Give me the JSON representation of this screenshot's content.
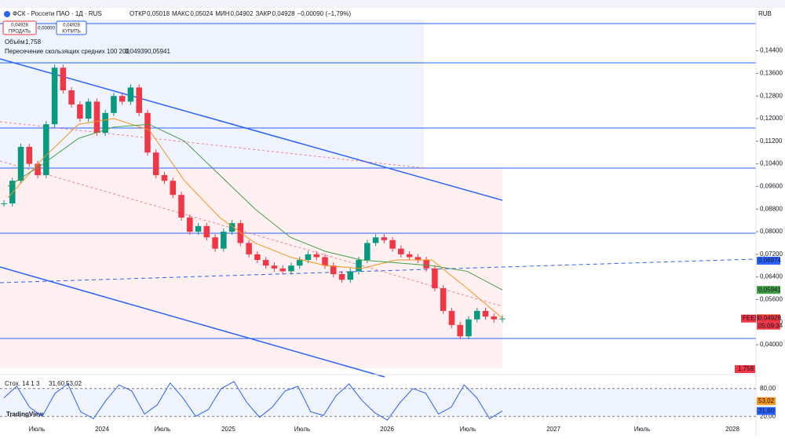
{
  "header": {
    "symbol": "ФСК - Россети ПАО · 1Д · RUS",
    "ohlc": [
      {
        "label": "ОТКР",
        "value": "0,05018"
      },
      {
        "label": "МАКС",
        "value": "0,05024"
      },
      {
        "label": "МИН",
        "value": "0,04902"
      },
      {
        "label": "ЗАКР",
        "value": "0,04928"
      }
    ],
    "change": "−0,00090 (−1,79%)",
    "currency": "RUB"
  },
  "trade": {
    "sell_price": "0,04928",
    "sell": "ПРОДАТЬ",
    "spread": "0,00000",
    "buy_price": "0,04928",
    "buy": "КУПИТЬ"
  },
  "volume": {
    "label": "Объём",
    "value": "1,758",
    "badge": "1,758"
  },
  "ma_legend": {
    "label": "Пересечение скользящих средних 100 200",
    "fast": "0,04939",
    "slow": "0,05941"
  },
  "chart_data": {
    "type": "candlestick",
    "ylim": [
      0.0314,
      0.155
    ],
    "yticks": [
      {
        "value": 0.144,
        "label": "0,14400"
      },
      {
        "value": 0.136,
        "label": "0,13600"
      },
      {
        "value": 0.128,
        "label": "0,12800"
      },
      {
        "value": 0.12,
        "label": "0,12000"
      },
      {
        "value": 0.112,
        "label": "0,11200"
      },
      {
        "value": 0.104,
        "label": "0,10400"
      },
      {
        "value": 0.096,
        "label": "0,09600"
      },
      {
        "value": 0.088,
        "label": "0,08800"
      },
      {
        "value": 0.08,
        "label": "0,08000"
      },
      {
        "value": 0.072,
        "label": "0,07200"
      },
      {
        "value": 0.064,
        "label": "0,06400"
      },
      {
        "value": 0.056,
        "label": "0,05600"
      },
      {
        "value": 0.048,
        "label": "0,04800"
      },
      {
        "value": 0.04,
        "label": "0,04000"
      }
    ],
    "closes": [
      0.09,
      0.098,
      0.11,
      0.104,
      0.1,
      0.118,
      0.138,
      0.13,
      0.125,
      0.12,
      0.126,
      0.115,
      0.122,
      0.128,
      0.126,
      0.131,
      0.122,
      0.108,
      0.1,
      0.098,
      0.093,
      0.085,
      0.08,
      0.082,
      0.078,
      0.074,
      0.08,
      0.083,
      0.076,
      0.072,
      0.07,
      0.068,
      0.067,
      0.066,
      0.068,
      0.07,
      0.072,
      0.071,
      0.068,
      0.065,
      0.063,
      0.066,
      0.07,
      0.076,
      0.078,
      0.077,
      0.074,
      0.072,
      0.071,
      0.07,
      0.067,
      0.06,
      0.052,
      0.047,
      0.043,
      0.049,
      0.052,
      0.05,
      0.049,
      0.04928
    ],
    "series": [
      {
        "name": "MA 100",
        "color": "#f7941d",
        "values": [
          0.092,
          0.106,
          0.118,
          0.12,
          0.116,
          0.098,
          0.085,
          0.076,
          0.071,
          0.068,
          0.067,
          0.07,
          0.07,
          0.06,
          0.04939
        ]
      },
      {
        "name": "MA 200",
        "color": "#43a047",
        "values": [
          0.096,
          0.104,
          0.113,
          0.117,
          0.118,
          0.112,
          0.1,
          0.088,
          0.078,
          0.073,
          0.07,
          0.069,
          0.068,
          0.066,
          0.05941
        ]
      }
    ],
    "badges": [
      {
        "label": "0,06974",
        "color": "#2962ff",
        "value": 0.06974
      },
      {
        "label": "0,05941",
        "color": "#43a047",
        "value": 0.05941
      },
      {
        "label": "0,04939",
        "color": "#f7941d",
        "value": 0.04939
      },
      {
        "label": "0,04928",
        "color": "#f23645",
        "value": 0.04928
      }
    ],
    "timer": "05:09:34",
    "ticker_badge": "FEES"
  },
  "stoch": {
    "label": "Стох. 14 1 3",
    "k": "31,60",
    "d": "53,02",
    "ylim": [
      0,
      100
    ],
    "yticks": [
      {
        "value": 80,
        "label": "80,00"
      },
      {
        "value": 20,
        "label": "20,00"
      }
    ],
    "badges": [
      {
        "label": "53,02",
        "color": "#f7941d",
        "value": 53.02
      },
      {
        "label": "31,60",
        "color": "#2962ff",
        "value": 31.6
      }
    ],
    "values": [
      60,
      85,
      40,
      20,
      70,
      90,
      30,
      15,
      55,
      88,
      75,
      25,
      45,
      92,
      60,
      20,
      35,
      80,
      95,
      50,
      18,
      40,
      75,
      85,
      30,
      22,
      65,
      90,
      55,
      28,
      12,
      50,
      80,
      70,
      25,
      40,
      88,
      60,
      15,
      31.6
    ]
  },
  "xaxis": [
    "Июль",
    "2024",
    "Июль",
    "2025",
    "Июль",
    "2026",
    "Июль",
    "2027",
    "Июль",
    "2028"
  ],
  "logo": "TradingView"
}
